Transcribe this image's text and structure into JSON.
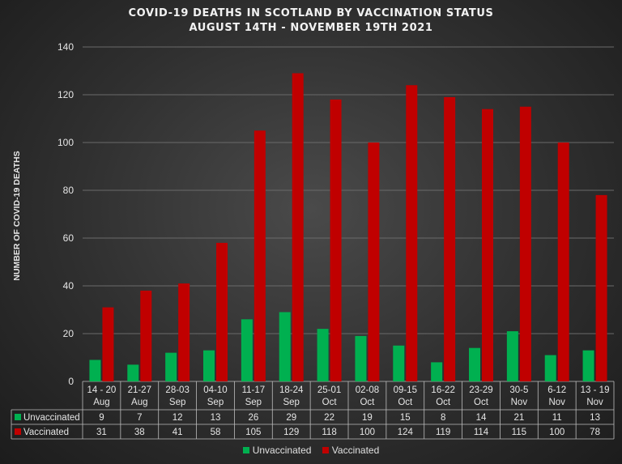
{
  "colors": {
    "unvaccinated": "#00b050",
    "vaccinated": "#c00000"
  },
  "chart_data": {
    "type": "bar",
    "title": "COVID-19 DEATHS IN SCOTLAND BY VACCINATION STATUS",
    "subtitle": "AUGUST 14TH - NOVEMBER 19TH 2021",
    "ylabel": "NUMBER OF COVID-19 DEATHS",
    "xlabel": "",
    "ylim": [
      0,
      140
    ],
    "yticks": [
      0,
      20,
      40,
      60,
      80,
      100,
      120,
      140
    ],
    "grid": true,
    "legend": "bottom",
    "categories": [
      [
        "14 - 20",
        "Aug"
      ],
      [
        "21-27",
        "Aug"
      ],
      [
        "28-03",
        "Sep"
      ],
      [
        "04-10",
        "Sep"
      ],
      [
        "11-17",
        "Sep"
      ],
      [
        "18-24",
        "Sep"
      ],
      [
        "25-01",
        "Oct"
      ],
      [
        "02-08",
        "Oct"
      ],
      [
        "09-15",
        "Oct"
      ],
      [
        "16-22",
        "Oct"
      ],
      [
        "23-29",
        "Oct"
      ],
      [
        "30-5",
        "Nov"
      ],
      [
        "6-12",
        "Nov"
      ],
      [
        "13 - 19",
        "Nov"
      ]
    ],
    "series": [
      {
        "name": "Unvaccinated",
        "values": [
          9,
          7,
          12,
          13,
          26,
          29,
          22,
          19,
          15,
          8,
          14,
          21,
          11,
          13
        ]
      },
      {
        "name": "Vaccinated",
        "values": [
          31,
          38,
          41,
          58,
          105,
          129,
          118,
          100,
          124,
          119,
          114,
          115,
          100,
          78
        ]
      }
    ]
  }
}
